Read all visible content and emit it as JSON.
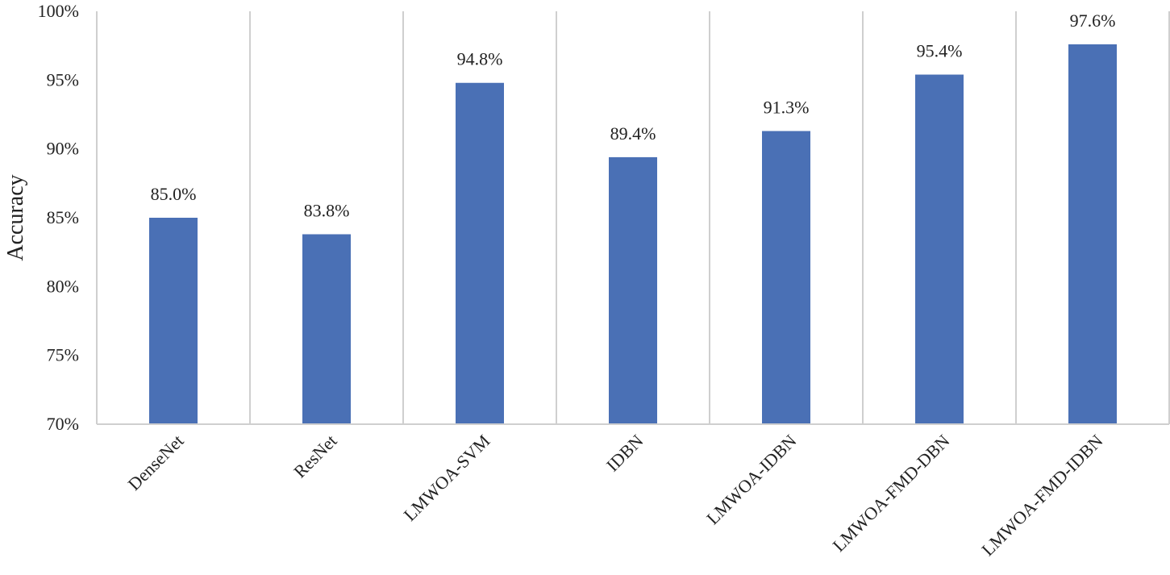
{
  "chart_data": {
    "type": "bar",
    "title": "",
    "xlabel": "",
    "ylabel": "Accuracy",
    "categories": [
      "DenseNet",
      "ResNet",
      "LMWOA-SVM",
      "IDBN",
      "LMWOA-IDBN",
      "LMWOA-FMD-DBN",
      "LMWOA-FMD-IDBN"
    ],
    "values": [
      85.0,
      83.8,
      94.8,
      89.4,
      91.3,
      95.4,
      97.6
    ],
    "data_labels": [
      "85.0%",
      "83.8%",
      "94.8%",
      "89.4%",
      "91.3%",
      "95.4%",
      "97.6%"
    ],
    "ylim": [
      70,
      100
    ],
    "yticks": [
      70,
      75,
      80,
      85,
      90,
      95,
      100
    ],
    "ytick_labels": [
      "70%",
      "75%",
      "80%",
      "85%",
      "90%",
      "95%",
      "100%"
    ],
    "bar_color": "#4a70b5",
    "grid": "vertical category separators",
    "legend": "none"
  }
}
